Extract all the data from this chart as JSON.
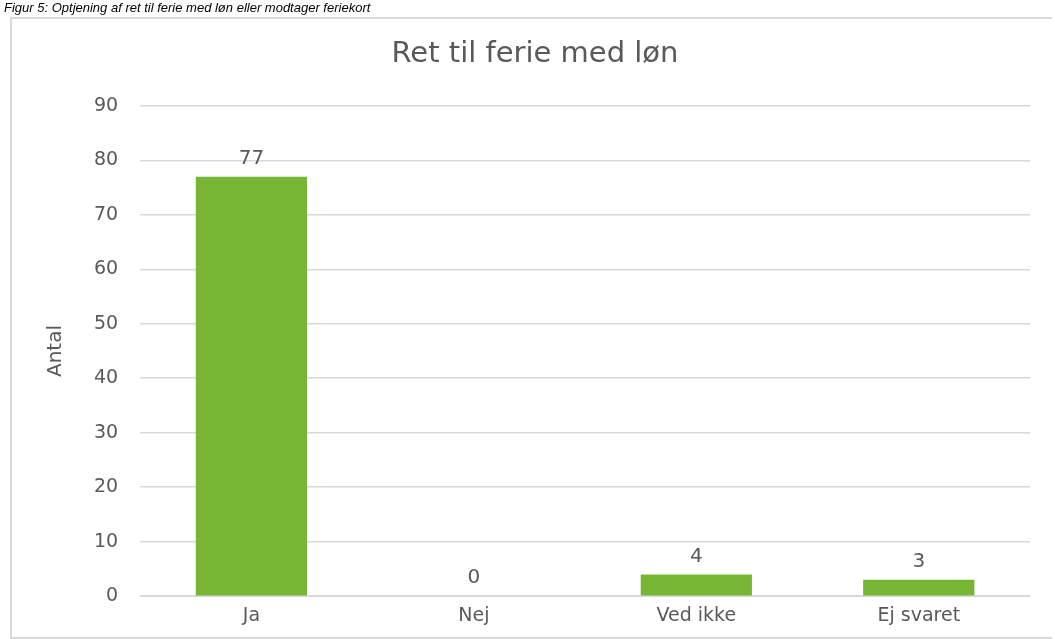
{
  "chart_data": {
    "type": "bar",
    "title": "Ret til ferie med løn",
    "ylabel": "Antal",
    "annotations": [
      "Figur 5: Optjening af ret til ferie med løn eller modtager feriekort"
    ],
    "categories": [
      "Ja",
      "Nej",
      "Ved ikke",
      "Ej svaret"
    ],
    "values": [
      77,
      0,
      4,
      3
    ],
    "color": "#77b535",
    "ylim": [
      0,
      90
    ],
    "yticks": [
      0,
      10,
      20,
      30,
      40,
      50,
      60,
      70,
      80,
      90
    ],
    "grid": "y",
    "data_labels": true
  }
}
